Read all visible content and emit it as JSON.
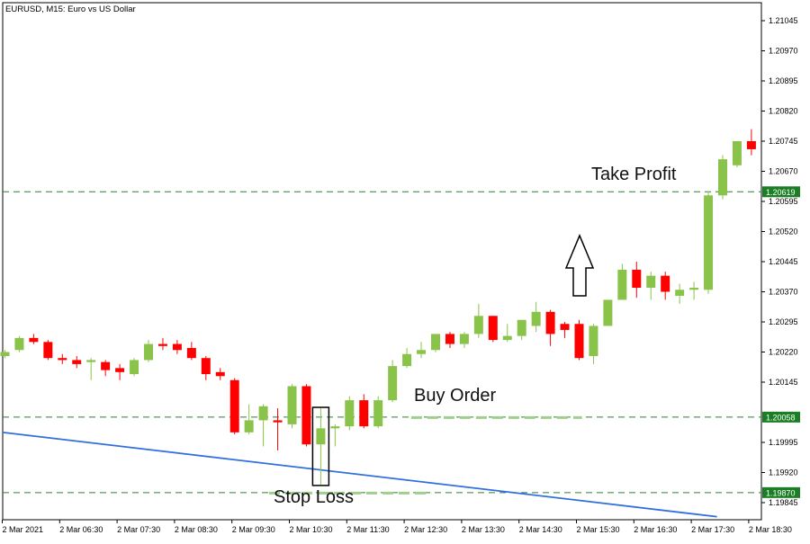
{
  "chart_data": {
    "type": "candlestick",
    "title": "EURUSD, M15:  Euro vs US Dollar",
    "ylim": [
      1.1982,
      1.2112
    ],
    "y_ticks": [
      "1.21045",
      "1.20970",
      "1.20895",
      "1.20820",
      "1.20745",
      "1.20670",
      "1.20595",
      "1.20520",
      "1.20445",
      "1.20370",
      "1.20295",
      "1.20220",
      "1.20145",
      "1.19995",
      "1.19920",
      "1.19845"
    ],
    "x_ticks": [
      {
        "index": 0,
        "label": "2 Mar 2021"
      },
      {
        "index": 4,
        "label": "2 Mar 06:30"
      },
      {
        "index": 8,
        "label": "2 Mar 07:30"
      },
      {
        "index": 12,
        "label": "2 Mar 08:30"
      },
      {
        "index": 16,
        "label": "2 Mar 09:30"
      },
      {
        "index": 20,
        "label": "2 Mar 10:30"
      },
      {
        "index": 24,
        "label": "2 Mar 11:30"
      },
      {
        "index": 28,
        "label": "2 Mar 12:30"
      },
      {
        "index": 32,
        "label": "2 Mar 13:30"
      },
      {
        "index": 36,
        "label": "2 Mar 14:30"
      },
      {
        "index": 40,
        "label": "2 Mar 15:30"
      },
      {
        "index": 44,
        "label": "2 Mar 16:30"
      },
      {
        "index": 48,
        "label": "2 Mar 17:30"
      },
      {
        "index": 52,
        "label": "2 Mar 18:30"
      }
    ],
    "candles": [
      {
        "o": 1.2021,
        "h": 1.20225,
        "l": 1.20205,
        "c": 1.2022
      },
      {
        "o": 1.20225,
        "h": 1.2026,
        "l": 1.2022,
        "c": 1.20255
      },
      {
        "o": 1.20255,
        "h": 1.20265,
        "l": 1.2024,
        "c": 1.20245
      },
      {
        "o": 1.20245,
        "h": 1.2025,
        "l": 1.202,
        "c": 1.20205
      },
      {
        "o": 1.20205,
        "h": 1.20215,
        "l": 1.2019,
        "c": 1.202
      },
      {
        "o": 1.202,
        "h": 1.2021,
        "l": 1.2018,
        "c": 1.2019
      },
      {
        "o": 1.20195,
        "h": 1.20205,
        "l": 1.2015,
        "c": 1.202
      },
      {
        "o": 1.20195,
        "h": 1.202,
        "l": 1.2016,
        "c": 1.20175
      },
      {
        "o": 1.2018,
        "h": 1.2019,
        "l": 1.2015,
        "c": 1.2017
      },
      {
        "o": 1.20165,
        "h": 1.20205,
        "l": 1.2016,
        "c": 1.202
      },
      {
        "o": 1.202,
        "h": 1.2025,
        "l": 1.20195,
        "c": 1.2024
      },
      {
        "o": 1.2024,
        "h": 1.20255,
        "l": 1.20225,
        "c": 1.20235
      },
      {
        "o": 1.2024,
        "h": 1.2025,
        "l": 1.20215,
        "c": 1.20225
      },
      {
        "o": 1.2023,
        "h": 1.20245,
        "l": 1.202,
        "c": 1.20205
      },
      {
        "o": 1.20205,
        "h": 1.2021,
        "l": 1.2015,
        "c": 1.20165
      },
      {
        "o": 1.2017,
        "h": 1.2018,
        "l": 1.2015,
        "c": 1.2016
      },
      {
        "o": 1.2015,
        "h": 1.20155,
        "l": 1.20015,
        "c": 1.2002
      },
      {
        "o": 1.2002,
        "h": 1.2009,
        "l": 1.20015,
        "c": 1.2005
      },
      {
        "o": 1.2005,
        "h": 1.2009,
        "l": 1.19985,
        "c": 1.20085
      },
      {
        "o": 1.2005,
        "h": 1.2008,
        "l": 1.19975,
        "c": 1.20045
      },
      {
        "o": 1.2004,
        "h": 1.2014,
        "l": 1.2003,
        "c": 1.20135
      },
      {
        "o": 1.20135,
        "h": 1.2014,
        "l": 1.19985,
        "c": 1.1999
      },
      {
        "o": 1.1999,
        "h": 1.2008,
        "l": 1.1989,
        "c": 1.2003
      },
      {
        "o": 1.2003,
        "h": 1.2004,
        "l": 1.19985,
        "c": 1.20035
      },
      {
        "o": 1.20035,
        "h": 1.2011,
        "l": 1.20025,
        "c": 1.201
      },
      {
        "o": 1.201,
        "h": 1.20115,
        "l": 1.2003,
        "c": 1.20035
      },
      {
        "o": 1.20035,
        "h": 1.2011,
        "l": 1.2003,
        "c": 1.201
      },
      {
        "o": 1.201,
        "h": 1.202,
        "l": 1.20095,
        "c": 1.20185
      },
      {
        "o": 1.20185,
        "h": 1.2023,
        "l": 1.2018,
        "c": 1.20215
      },
      {
        "o": 1.20215,
        "h": 1.20245,
        "l": 1.20205,
        "c": 1.20225
      },
      {
        "o": 1.20225,
        "h": 1.20265,
        "l": 1.2022,
        "c": 1.20265
      },
      {
        "o": 1.20265,
        "h": 1.2027,
        "l": 1.2023,
        "c": 1.2024
      },
      {
        "o": 1.2024,
        "h": 1.2027,
        "l": 1.2023,
        "c": 1.20265
      },
      {
        "o": 1.20265,
        "h": 1.2034,
        "l": 1.20255,
        "c": 1.2031
      },
      {
        "o": 1.2031,
        "h": 1.2031,
        "l": 1.20245,
        "c": 1.2025
      },
      {
        "o": 1.2025,
        "h": 1.2029,
        "l": 1.20245,
        "c": 1.2026
      },
      {
        "o": 1.2026,
        "h": 1.203,
        "l": 1.2025,
        "c": 1.203
      },
      {
        "o": 1.20285,
        "h": 1.20345,
        "l": 1.2027,
        "c": 1.2032
      },
      {
        "o": 1.2032,
        "h": 1.20325,
        "l": 1.20235,
        "c": 1.20265
      },
      {
        "o": 1.2029,
        "h": 1.20295,
        "l": 1.20255,
        "c": 1.20275
      },
      {
        "o": 1.2029,
        "h": 1.203,
        "l": 1.202,
        "c": 1.20205
      },
      {
        "o": 1.2021,
        "h": 1.2029,
        "l": 1.2019,
        "c": 1.20285
      },
      {
        "o": 1.20285,
        "h": 1.2035,
        "l": 1.20285,
        "c": 1.2035
      },
      {
        "o": 1.2035,
        "h": 1.2044,
        "l": 1.2035,
        "c": 1.20425
      },
      {
        "o": 1.20425,
        "h": 1.20445,
        "l": 1.20355,
        "c": 1.2038
      },
      {
        "o": 1.2038,
        "h": 1.2042,
        "l": 1.2035,
        "c": 1.2041
      },
      {
        "o": 1.2041,
        "h": 1.2042,
        "l": 1.2035,
        "c": 1.2037
      },
      {
        "o": 1.2036,
        "h": 1.2039,
        "l": 1.2034,
        "c": 1.20375
      },
      {
        "o": 1.20375,
        "h": 1.20395,
        "l": 1.2035,
        "c": 1.2038
      },
      {
        "o": 1.20375,
        "h": 1.2062,
        "l": 1.20365,
        "c": 1.2061
      },
      {
        "o": 1.2061,
        "h": 1.2071,
        "l": 1.206,
        "c": 1.207
      },
      {
        "o": 1.20685,
        "h": 1.20745,
        "l": 1.2068,
        "c": 1.20745
      },
      {
        "o": 1.20745,
        "h": 1.20775,
        "l": 1.2071,
        "c": 1.20725
      }
    ],
    "levels": [
      {
        "name": "take-profit",
        "value": 1.20619,
        "tag": "1.20619"
      },
      {
        "name": "buy-order",
        "value": 1.20058,
        "tag": "1.20058"
      },
      {
        "name": "stop-loss",
        "value": 1.1987,
        "tag": "1.19870"
      }
    ],
    "annotations": {
      "take_profit": "Take Profit",
      "buy_order": "Buy Order",
      "stop_loss": "Stop Loss"
    },
    "trendline": {
      "start": {
        "index": 0,
        "value": 1.2002
      },
      "end": {
        "index": 49.6,
        "value": 1.1981
      }
    },
    "highlight_box": {
      "index": 22,
      "high": 1.2008,
      "low": 1.1989
    },
    "up_arrow": {
      "index": 40,
      "value_top": 1.2051,
      "value_bottom": 1.2036
    },
    "colors": {
      "bull": "#8ac34a",
      "bear": "#ff0000",
      "trendline": "#2f6fe0",
      "level_line": "#2e7d32",
      "level_tag": "#1b7e24",
      "buy_dash": "#9ecf8b"
    }
  }
}
